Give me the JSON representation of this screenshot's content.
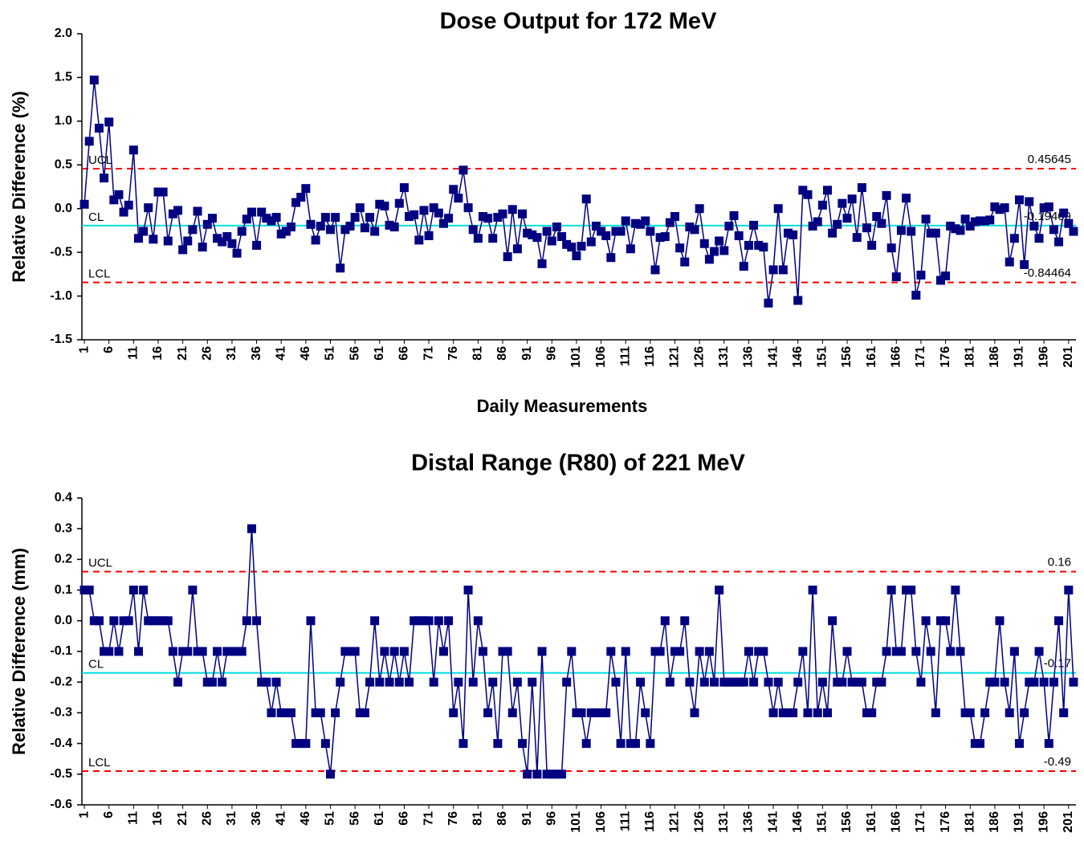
{
  "chart_data": [
    {
      "type": "line",
      "title": "Dose Output for 172 MeV",
      "x_label": "Daily Measurements",
      "y_label": "Relative Difference (%)",
      "x": [
        1,
        2,
        3,
        4,
        5,
        6,
        7,
        8,
        9,
        10,
        11,
        12,
        13,
        14,
        15,
        16,
        17,
        18,
        19,
        20,
        21,
        22,
        23,
        24,
        25,
        26,
        27,
        28,
        29,
        30,
        31,
        32,
        33,
        34,
        35,
        36,
        37,
        38,
        39,
        40,
        41,
        42,
        43,
        44,
        45,
        46,
        47,
        48,
        49,
        50,
        51,
        52,
        53,
        54,
        55,
        56,
        57,
        58,
        59,
        60,
        61,
        62,
        63,
        64,
        65,
        66,
        67,
        68,
        69,
        70,
        71,
        72,
        73,
        74,
        75,
        76,
        77,
        78,
        79,
        80,
        81,
        82,
        83,
        84,
        85,
        86,
        87,
        88,
        89,
        90,
        91,
        92,
        93,
        94,
        95,
        96,
        97,
        98,
        99,
        100,
        101,
        102,
        103,
        104,
        105,
        106,
        107,
        108,
        109,
        110,
        111,
        112,
        113,
        114,
        115,
        116,
        117,
        118,
        119,
        120,
        121,
        122,
        123,
        124,
        125,
        126,
        127,
        128,
        129,
        130,
        131,
        132,
        133,
        134,
        135,
        136,
        137,
        138,
        139,
        140,
        141,
        142,
        143,
        144,
        145,
        146,
        147,
        148,
        149,
        150,
        151,
        152,
        153,
        154,
        155,
        156,
        157,
        158,
        159,
        160,
        161,
        162,
        163,
        164,
        165,
        166,
        167,
        168,
        169,
        170,
        171,
        172,
        173,
        174,
        175,
        176,
        177,
        178,
        179,
        180,
        181,
        182,
        183,
        184,
        185,
        186,
        187,
        188,
        189,
        190,
        191,
        192,
        193,
        194,
        195,
        196,
        197,
        198,
        199,
        200,
        201,
        202
      ],
      "series": [
        {
          "color": "#000080",
          "values": [
            0.05,
            0.77,
            1.47,
            0.92,
            0.35,
            0.99,
            0.1,
            0.16,
            -0.04,
            0.04,
            0.67,
            -0.34,
            -0.26,
            0.01,
            -0.35,
            0.19,
            0.19,
            -0.37,
            -0.06,
            -0.02,
            -0.47,
            -0.37,
            -0.24,
            -0.03,
            -0.44,
            -0.18,
            -0.11,
            -0.34,
            -0.38,
            -0.32,
            -0.4,
            -0.51,
            -0.26,
            -0.12,
            -0.04,
            -0.42,
            -0.04,
            -0.11,
            -0.14,
            -0.1,
            -0.29,
            -0.26,
            -0.21,
            0.07,
            0.13,
            0.23,
            -0.18,
            -0.36,
            -0.2,
            -0.1,
            -0.24,
            -0.1,
            -0.68,
            -0.24,
            -0.2,
            -0.1,
            0.01,
            -0.22,
            -0.1,
            -0.26,
            0.05,
            0.03,
            -0.19,
            -0.21,
            0.06,
            0.24,
            -0.09,
            -0.07,
            -0.36,
            -0.02,
            -0.31,
            0.01,
            -0.05,
            -0.17,
            -0.11,
            0.22,
            0.12,
            0.44,
            0.01,
            -0.24,
            -0.34,
            -0.09,
            -0.11,
            -0.34,
            -0.1,
            -0.06,
            -0.55,
            -0.01,
            -0.46,
            -0.06,
            -0.28,
            -0.3,
            -0.33,
            -0.63,
            -0.26,
            -0.37,
            -0.21,
            -0.32,
            -0.41,
            -0.44,
            -0.54,
            -0.43,
            0.11,
            -0.38,
            -0.2,
            -0.26,
            -0.31,
            -0.56,
            -0.26,
            -0.26,
            -0.14,
            -0.46,
            -0.17,
            -0.18,
            -0.14,
            -0.26,
            -0.7,
            -0.33,
            -0.32,
            -0.16,
            -0.09,
            -0.45,
            -0.61,
            -0.21,
            -0.24,
            0.0,
            -0.4,
            -0.58,
            -0.49,
            -0.37,
            -0.48,
            -0.2,
            -0.08,
            -0.31,
            -0.66,
            -0.42,
            -0.19,
            -0.42,
            -0.44,
            -1.08,
            -0.7,
            0.0,
            -0.7,
            -0.28,
            -0.3,
            -1.05,
            0.21,
            0.16,
            -0.2,
            -0.15,
            0.04,
            0.21,
            -0.28,
            -0.18,
            0.06,
            -0.11,
            0.11,
            -0.33,
            0.24,
            -0.22,
            -0.42,
            -0.09,
            -0.17,
            0.15,
            -0.45,
            -0.78,
            -0.25,
            0.12,
            -0.26,
            -0.99,
            -0.76,
            -0.12,
            -0.28,
            -0.28,
            -0.82,
            -0.77,
            -0.2,
            -0.23,
            -0.25,
            -0.12,
            -0.2,
            -0.15,
            -0.14,
            -0.14,
            -0.13,
            0.02,
            -0.01,
            0.01,
            -0.61,
            -0.34,
            0.1,
            -0.64,
            0.08,
            -0.2,
            -0.34,
            0.01,
            0.02,
            -0.24,
            -0.38,
            -0.05,
            -0.17,
            -0.26
          ]
        }
      ],
      "control_lines": [
        {
          "label": "UCL",
          "value": 0.45645,
          "color": "#ff0000",
          "dashed": true
        },
        {
          "label": "CL",
          "value": -0.19409,
          "color": "#00e0e0",
          "dashed": false
        },
        {
          "label": "LCL",
          "value": -0.84464,
          "color": "#ff0000",
          "dashed": true
        }
      ],
      "xlim": [
        0.5,
        202.5
      ],
      "xticks": [
        1,
        6,
        11,
        16,
        21,
        26,
        31,
        36,
        41,
        46,
        51,
        56,
        61,
        66,
        71,
        76,
        81,
        86,
        91,
        96,
        101,
        106,
        111,
        116,
        121,
        126,
        131,
        136,
        141,
        146,
        151,
        156,
        161,
        166,
        171,
        176,
        181,
        186,
        191,
        196,
        201
      ],
      "ylim": [
        -1.5,
        2.0
      ],
      "yticks": [
        {
          "value": 2.0,
          "label": "2.0"
        },
        1.5,
        {
          "value": 1.0,
          "label": "1.0"
        },
        0.5,
        {
          "value": 0.0,
          "label": "0.0"
        },
        -0.5,
        {
          "value": -1.0,
          "label": "-1.0"
        },
        -1.5
      ]
    },
    {
      "type": "line",
      "title": "Distal Range (R80) of 221 MeV",
      "y_label": "Relative Difference (mm)",
      "x": [
        1,
        2,
        3,
        4,
        5,
        6,
        7,
        8,
        9,
        10,
        11,
        12,
        13,
        14,
        15,
        16,
        17,
        18,
        19,
        20,
        21,
        22,
        23,
        24,
        25,
        26,
        27,
        28,
        29,
        30,
        31,
        32,
        33,
        34,
        35,
        36,
        37,
        38,
        39,
        40,
        41,
        42,
        43,
        44,
        45,
        46,
        47,
        48,
        49,
        50,
        51,
        52,
        53,
        54,
        55,
        56,
        57,
        58,
        59,
        60,
        61,
        62,
        63,
        64,
        65,
        66,
        67,
        68,
        69,
        70,
        71,
        72,
        73,
        74,
        75,
        76,
        77,
        78,
        79,
        80,
        81,
        82,
        83,
        84,
        85,
        86,
        87,
        88,
        89,
        90,
        91,
        92,
        93,
        94,
        95,
        96,
        97,
        98,
        99,
        100,
        101,
        102,
        103,
        104,
        105,
        106,
        107,
        108,
        109,
        110,
        111,
        112,
        113,
        114,
        115,
        116,
        117,
        118,
        119,
        120,
        121,
        122,
        123,
        124,
        125,
        126,
        127,
        128,
        129,
        130,
        131,
        132,
        133,
        134,
        135,
        136,
        137,
        138,
        139,
        140,
        141,
        142,
        143,
        144,
        145,
        146,
        147,
        148,
        149,
        150,
        151,
        152,
        153,
        154,
        155,
        156,
        157,
        158,
        159,
        160,
        161,
        162,
        163,
        164,
        165,
        166,
        167,
        168,
        169,
        170,
        171,
        172,
        173,
        174,
        175,
        176,
        177,
        178,
        179,
        180,
        181,
        182,
        183,
        184,
        185,
        186,
        187,
        188,
        189,
        190,
        191,
        192,
        193,
        194,
        195,
        196,
        197,
        198,
        199,
        200,
        201,
        202
      ],
      "series": [
        {
          "color": "#000080",
          "values": [
            0.1,
            0.1,
            0,
            0,
            -0.1,
            -0.1,
            0,
            -0.1,
            0,
            0,
            0.1,
            -0.1,
            0.1,
            0,
            0,
            0,
            0,
            0,
            -0.1,
            -0.2,
            -0.1,
            -0.1,
            0.1,
            -0.1,
            -0.1,
            -0.2,
            -0.2,
            -0.1,
            -0.2,
            -0.1,
            -0.1,
            -0.1,
            -0.1,
            0,
            0.3,
            0,
            -0.2,
            -0.2,
            -0.3,
            -0.2,
            -0.3,
            -0.3,
            -0.3,
            -0.4,
            -0.4,
            -0.4,
            0,
            -0.3,
            -0.3,
            -0.4,
            -0.5,
            -0.3,
            -0.2,
            -0.1,
            -0.1,
            -0.1,
            -0.3,
            -0.3,
            -0.2,
            0,
            -0.2,
            -0.1,
            -0.2,
            -0.1,
            -0.2,
            -0.1,
            -0.2,
            0,
            0,
            0,
            0,
            -0.2,
            0,
            -0.1,
            0,
            -0.3,
            -0.2,
            -0.4,
            0.1,
            -0.2,
            0,
            -0.1,
            -0.3,
            -0.2,
            -0.4,
            -0.1,
            -0.1,
            -0.3,
            -0.2,
            -0.4,
            -0.5,
            -0.2,
            -0.5,
            -0.1,
            -0.5,
            -0.5,
            -0.5,
            -0.5,
            -0.2,
            -0.1,
            -0.3,
            -0.3,
            -0.4,
            -0.3,
            -0.3,
            -0.3,
            -0.3,
            -0.1,
            -0.2,
            -0.4,
            -0.1,
            -0.4,
            -0.4,
            -0.2,
            -0.3,
            -0.4,
            -0.1,
            -0.1,
            0,
            -0.2,
            -0.1,
            -0.1,
            0,
            -0.2,
            -0.3,
            -0.1,
            -0.2,
            -0.1,
            -0.2,
            0.1,
            -0.2,
            -0.2,
            -0.2,
            -0.2,
            -0.2,
            -0.1,
            -0.2,
            -0.1,
            -0.1,
            -0.2,
            -0.3,
            -0.2,
            -0.3,
            -0.3,
            -0.3,
            -0.2,
            -0.1,
            -0.3,
            0.1,
            -0.3,
            -0.2,
            -0.3,
            0,
            -0.2,
            -0.2,
            -0.1,
            -0.2,
            -0.2,
            -0.2,
            -0.3,
            -0.3,
            -0.2,
            -0.2,
            -0.1,
            0.1,
            -0.1,
            -0.1,
            0.1,
            0.1,
            -0.1,
            -0.2,
            0,
            -0.1,
            -0.3,
            0,
            0,
            -0.1,
            0.1,
            -0.1,
            -0.3,
            -0.3,
            -0.4,
            -0.4,
            -0.3,
            -0.2,
            -0.2,
            0,
            -0.2,
            -0.3,
            -0.1,
            -0.4,
            -0.3,
            -0.2,
            -0.2,
            -0.1,
            -0.2,
            -0.4,
            -0.2,
            0,
            -0.3,
            0.1,
            -0.2
          ]
        }
      ],
      "control_lines": [
        {
          "label": "UCL",
          "value": 0.16,
          "color": "#ff0000",
          "dashed": true
        },
        {
          "label": "CL",
          "value": -0.17,
          "color": "#00e0e0",
          "dashed": false
        },
        {
          "label": "LCL",
          "value": -0.49,
          "color": "#ff0000",
          "dashed": true
        }
      ],
      "xlim": [
        0.5,
        202.5
      ],
      "xticks": [
        1,
        6,
        11,
        16,
        21,
        26,
        31,
        36,
        41,
        46,
        51,
        56,
        61,
        66,
        71,
        76,
        81,
        86,
        91,
        96,
        101,
        106,
        111,
        116,
        121,
        126,
        131,
        136,
        141,
        146,
        151,
        156,
        161,
        166,
        171,
        176,
        181,
        186,
        191,
        196,
        201
      ],
      "ylim": [
        -0.6,
        0.4
      ],
      "yticks": [
        0.4,
        0.3,
        0.2,
        0.1,
        {
          "value": 0.0,
          "label": "0.0"
        },
        -0.1,
        -0.2,
        -0.3,
        -0.4,
        -0.5,
        -0.6
      ]
    }
  ]
}
